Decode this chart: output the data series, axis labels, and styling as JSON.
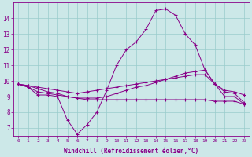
{
  "xlabel": "Windchill (Refroidissement éolien,°C)",
  "background_color": "#cce8e8",
  "line_color": "#880088",
  "grid_color": "#99cccc",
  "hours": [
    0,
    1,
    2,
    3,
    4,
    5,
    6,
    7,
    8,
    9,
    10,
    11,
    12,
    13,
    14,
    15,
    16,
    17,
    18,
    19,
    20,
    21,
    22,
    23
  ],
  "line1": [
    9.8,
    9.6,
    9.1,
    9.1,
    9.0,
    7.5,
    6.6,
    7.2,
    8.0,
    9.4,
    11.0,
    12.0,
    12.5,
    13.3,
    14.5,
    14.6,
    14.2,
    13.0,
    12.3,
    10.7,
    9.8,
    9.0,
    9.0,
    8.5
  ],
  "line2": [
    9.8,
    9.6,
    9.3,
    9.2,
    9.1,
    9.0,
    8.9,
    8.9,
    8.9,
    9.0,
    9.2,
    9.4,
    9.6,
    9.7,
    9.9,
    10.1,
    10.3,
    10.5,
    10.6,
    10.7,
    9.8,
    9.3,
    9.2,
    8.6
  ],
  "line3": [
    9.8,
    9.7,
    9.6,
    9.5,
    9.4,
    9.3,
    9.2,
    9.3,
    9.4,
    9.5,
    9.6,
    9.7,
    9.8,
    9.9,
    10.0,
    10.1,
    10.2,
    10.3,
    10.4,
    10.4,
    9.8,
    9.4,
    9.3,
    9.1
  ],
  "line4": [
    9.8,
    9.7,
    9.5,
    9.3,
    9.2,
    9.0,
    8.9,
    8.8,
    8.8,
    8.8,
    8.8,
    8.8,
    8.8,
    8.8,
    8.8,
    8.8,
    8.8,
    8.8,
    8.8,
    8.8,
    8.7,
    8.7,
    8.7,
    8.5
  ],
  "ylim": [
    6.5,
    15.0
  ],
  "yticks": [
    7,
    8,
    9,
    10,
    11,
    12,
    13,
    14
  ],
  "xtick_fontsize": 4.5,
  "ytick_fontsize": 5.5
}
